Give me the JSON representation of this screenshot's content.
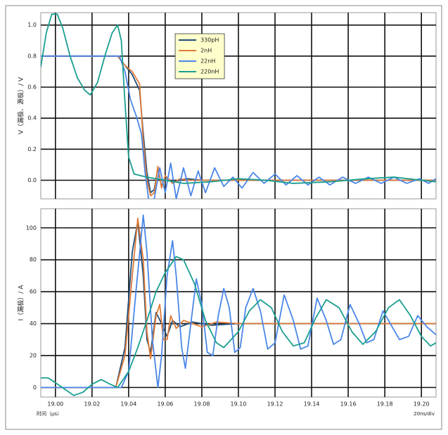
{
  "chart_data": [
    {
      "type": "line",
      "y_label": "V（漏极、源极）/ V",
      "ylim": [
        -0.12,
        1.08
      ],
      "yticks": [
        {
          "value": 0,
          "label": "0.0"
        },
        0.2,
        0.4,
        0.6,
        0.8,
        {
          "value": 1,
          "label": "1.0"
        }
      ],
      "grid": true,
      "legend": "upper center",
      "series": [
        {
          "name": "330pH",
          "color": "#1f4e79",
          "x": [
            18.992,
            19.034,
            19.038,
            19.042,
            19.046,
            19.048,
            19.05,
            19.052,
            19.054,
            19.056,
            19.058,
            19.06,
            19.064,
            19.068,
            19.072,
            19.08,
            19.09,
            19.1,
            19.208
          ],
          "values": [
            0.8,
            0.8,
            0.74,
            0.68,
            0.58,
            0.3,
            0.05,
            -0.08,
            -0.06,
            0.08,
            -0.04,
            0.02,
            -0.01,
            0,
            0.01,
            0,
            0,
            0,
            0
          ]
        },
        {
          "name": "2nH",
          "color": "#e07b39",
          "x": [
            18.992,
            19.034,
            19.038,
            19.042,
            19.046,
            19.048,
            19.05,
            19.052,
            19.054,
            19.056,
            19.058,
            19.06,
            19.064,
            19.068,
            19.072,
            19.08,
            19.09,
            19.1,
            19.208
          ],
          "values": [
            0.8,
            0.8,
            0.74,
            0.7,
            0.62,
            0.25,
            0,
            -0.1,
            -0.08,
            0.09,
            -0.05,
            0.03,
            -0.02,
            0.01,
            0,
            0,
            0,
            0,
            0
          ]
        },
        {
          "name": "22nH",
          "color": "#4a86e8",
          "x": [
            18.992,
            19.035,
            19.038,
            19.041,
            19.044,
            19.047,
            19.049,
            19.051,
            19.054,
            19.057,
            19.06,
            19.063,
            19.066,
            19.07,
            19.074,
            19.078,
            19.082,
            19.087,
            19.092,
            19.097,
            19.102,
            19.108,
            19.114,
            19.12,
            19.126,
            19.132,
            19.138,
            19.144,
            19.15,
            19.157,
            19.164,
            19.171,
            19.178,
            19.185,
            19.192,
            19.199,
            19.204,
            19.208
          ],
          "values": [
            0.8,
            0.8,
            0.7,
            0.52,
            0.42,
            0.3,
            0.05,
            -0.13,
            -0.12,
            0.08,
            -0.08,
            0.11,
            -0.12,
            0.08,
            -0.1,
            0.06,
            -0.08,
            0.08,
            -0.04,
            0.02,
            -0.05,
            0.05,
            -0.02,
            0.04,
            -0.03,
            0.03,
            -0.03,
            0.02,
            -0.03,
            0.02,
            -0.02,
            0.02,
            -0.02,
            0.02,
            -0.02,
            0.01,
            -0.02,
            0.01
          ]
        },
        {
          "name": "220nH",
          "color": "#1a9e8f",
          "x": [
            18.992,
            18.995,
            18.998,
            19.001,
            19.004,
            19.008,
            19.012,
            19.016,
            19.019,
            19.023,
            19.027,
            19.031,
            19.034,
            19.036,
            19.038,
            19.04,
            19.043,
            19.05,
            19.06,
            19.07,
            19.085,
            19.1,
            19.115,
            19.13,
            19.15,
            19.17,
            19.185,
            19.2,
            19.208
          ],
          "values": [
            0.73,
            0.95,
            1.07,
            1.07,
            0.98,
            0.8,
            0.66,
            0.58,
            0.55,
            0.63,
            0.8,
            0.95,
            1.0,
            0.9,
            0.5,
            0.15,
            0.04,
            0.02,
            0,
            -0.02,
            -0.01,
            0.01,
            0,
            -0.02,
            -0.01,
            0.01,
            0.02,
            0,
            -0.01
          ]
        }
      ]
    },
    {
      "type": "line",
      "y_label": "I（漏极）/ A",
      "x_label": "时间（μs）",
      "note": "20ns/div",
      "xlim": [
        18.992,
        19.208
      ],
      "xticks": [
        {
          "value": 19,
          "label": "19.00"
        },
        19.02,
        19.04,
        19.06,
        19.08,
        {
          "value": 19.1,
          "label": "19.10"
        },
        19.12,
        19.14,
        19.16,
        19.18,
        {
          "value": 19.2,
          "label": "19.20"
        }
      ],
      "ylim": [
        -6,
        112
      ],
      "yticks": [
        0,
        20,
        40,
        60,
        80,
        100
      ],
      "grid": true,
      "series": [
        {
          "color": "#1f4e79",
          "x": [
            18.992,
            19.033,
            19.038,
            19.042,
            19.045,
            19.048,
            19.05,
            19.052,
            19.055,
            19.058,
            19.061,
            19.064,
            19.068,
            19.075,
            19.085,
            19.1,
            19.208
          ],
          "values": [
            0,
            0,
            25,
            85,
            104,
            70,
            30,
            22,
            47,
            40,
            32,
            42,
            38,
            41,
            39,
            40,
            40
          ]
        },
        {
          "color": "#e07b39",
          "x": [
            18.992,
            19.033,
            19.038,
            19.042,
            19.045,
            19.048,
            19.05,
            19.052,
            19.055,
            19.057,
            19.059,
            19.061,
            19.063,
            19.066,
            19.07,
            19.075,
            19.08,
            19.088,
            19.1,
            19.208
          ],
          "values": [
            0,
            0,
            20,
            70,
            106,
            80,
            35,
            18,
            45,
            52,
            30,
            30,
            45,
            37,
            42,
            40,
            38,
            41,
            40,
            40
          ]
        },
        {
          "color": "#4a86e8",
          "x": [
            18.992,
            19.036,
            19.04,
            19.044,
            19.048,
            19.05,
            19.053,
            19.056,
            19.058,
            19.061,
            19.064,
            19.066,
            19.069,
            19.071,
            19.074,
            19.077,
            19.08,
            19.083,
            19.086,
            19.089,
            19.092,
            19.095,
            19.098,
            19.101,
            19.104,
            19.108,
            19.112,
            19.116,
            19.12,
            19.125,
            19.13,
            19.134,
            19.138,
            19.143,
            19.148,
            19.152,
            19.156,
            19.161,
            19.166,
            19.17,
            19.174,
            19.179,
            19.184,
            19.188,
            19.193,
            19.198,
            19.203,
            19.208
          ],
          "values": [
            0,
            0,
            10,
            60,
            108,
            85,
            30,
            0,
            20,
            70,
            92,
            70,
            25,
            12,
            40,
            68,
            52,
            22,
            20,
            45,
            62,
            50,
            22,
            25,
            50,
            62,
            48,
            24,
            28,
            58,
            42,
            24,
            26,
            56,
            42,
            27,
            30,
            52,
            40,
            28,
            30,
            48,
            38,
            30,
            32,
            45,
            38,
            33
          ]
        },
        {
          "color": "#1a9e8f",
          "x": [
            18.992,
            18.996,
            19.0,
            19.005,
            19.01,
            19.015,
            19.02,
            19.025,
            19.03,
            19.034,
            19.04,
            19.045,
            19.05,
            19.055,
            19.06,
            19.066,
            19.07,
            19.076,
            19.082,
            19.088,
            19.092,
            19.1,
            19.106,
            19.112,
            19.118,
            19.124,
            19.13,
            19.136,
            19.142,
            19.148,
            19.155,
            19.162,
            19.168,
            19.175,
            19.182,
            19.188,
            19.194,
            19.2,
            19.205,
            19.208
          ],
          "values": [
            6,
            6,
            3,
            -1,
            -5,
            -3,
            2,
            5,
            2,
            0,
            10,
            25,
            42,
            60,
            72,
            82,
            80,
            65,
            42,
            28,
            25,
            35,
            48,
            55,
            50,
            35,
            26,
            28,
            43,
            55,
            50,
            35,
            27,
            35,
            50,
            55,
            45,
            32,
            26,
            28
          ]
        }
      ]
    }
  ]
}
